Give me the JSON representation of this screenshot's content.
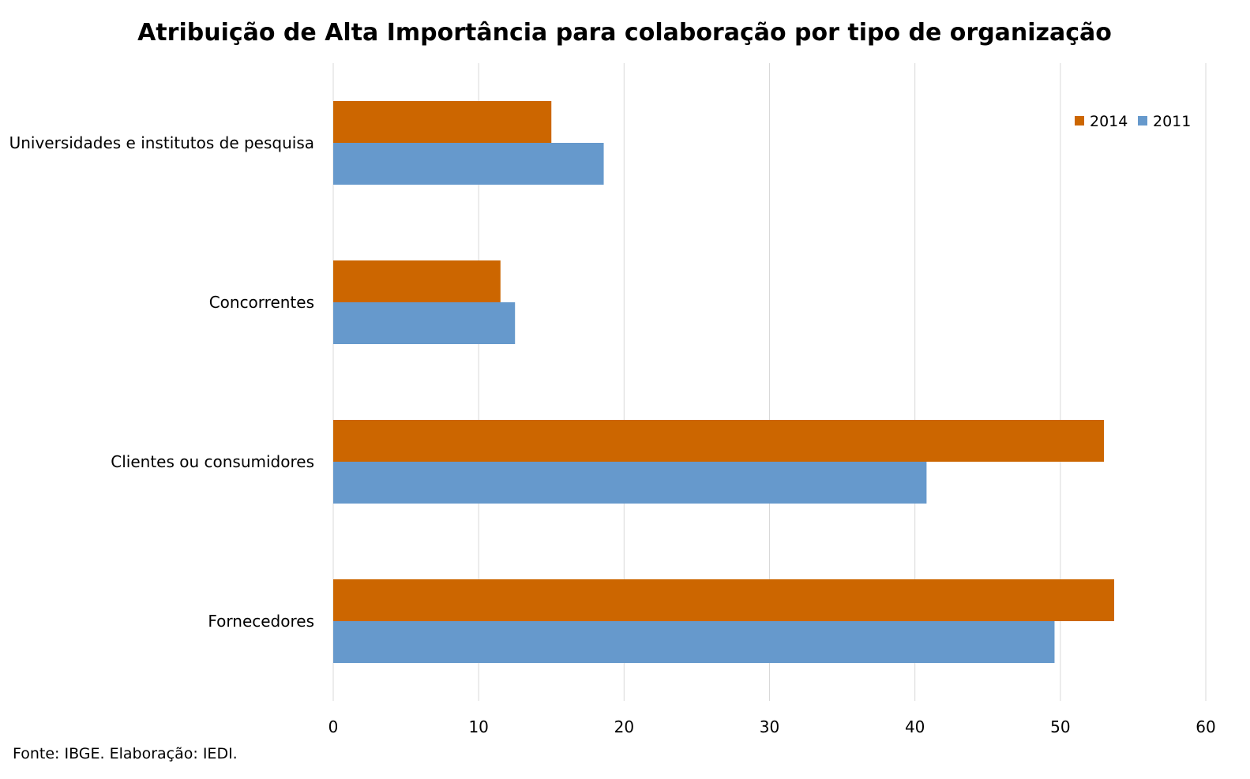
{
  "chart_data": {
    "type": "bar",
    "orientation": "horizontal",
    "title": "Atribuição de Alta Importância para colaboração por tipo de organização",
    "categories": [
      "Universidades e institutos de pesquisa",
      "Concorrentes",
      "Clientes ou consumidores",
      "Fornecedores"
    ],
    "series": [
      {
        "name": "2014",
        "values": [
          15.0,
          11.5,
          53.0,
          53.7
        ],
        "color": "#CC6600"
      },
      {
        "name": "2011",
        "values": [
          18.6,
          12.5,
          40.8,
          49.6
        ],
        "color": "#6699CC"
      }
    ],
    "xlim": [
      0,
      60
    ],
    "xticks": [
      "0",
      "10",
      "20",
      "30",
      "40",
      "50",
      "60"
    ],
    "grid": true,
    "legend_position": "top-right",
    "gridline_color": "#D9D9D9"
  },
  "source_note": "Fonte: IBGE. Elaboração: IEDI."
}
